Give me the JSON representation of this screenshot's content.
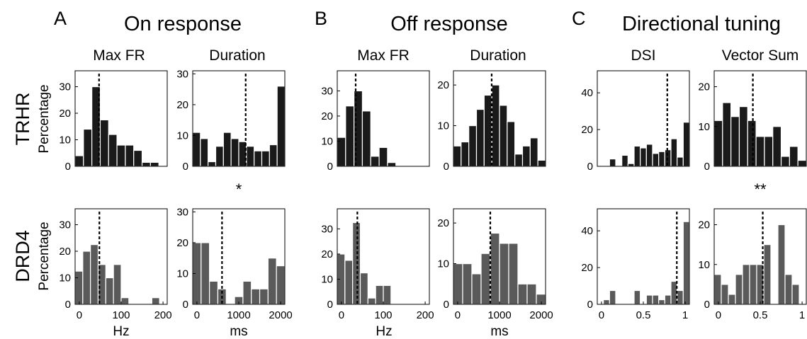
{
  "groups": [
    {
      "letter": "A",
      "title": "On response"
    },
    {
      "letter": "B",
      "title": "Off response"
    },
    {
      "letter": "C",
      "title": "Directional tuning"
    }
  ],
  "column_titles": [
    "Max FR",
    "Duration",
    "Max FR",
    "Duration",
    "DSI",
    "Vector Sum"
  ],
  "row_labels": [
    "TRHR",
    "DRD4"
  ],
  "ylabel": "Percentage",
  "xlabels": [
    "Hz",
    "ms",
    "Hz",
    "ms",
    "",
    ""
  ],
  "significance": [
    {
      "column": 1,
      "text": "*"
    },
    {
      "column": 5,
      "text": "**"
    }
  ],
  "colors": {
    "trhr_bar": "#1a1a1a",
    "drd4_bar": "#5a5a5a",
    "bar_edge": "#ffffff",
    "axis": "#000000"
  },
  "chart_data": [
    {
      "type": "bar",
      "group": "On response",
      "measure": "Max FR",
      "cell_type": "TRHR",
      "xlim": [
        0,
        200
      ],
      "xticks": [],
      "ylim": [
        0,
        36
      ],
      "yticks": [
        0,
        10,
        20,
        30
      ],
      "bin_edges": [
        0,
        200
      ],
      "values": [
        4,
        14,
        30,
        17.5,
        12,
        8,
        8,
        6,
        1.5,
        1.5,
        0
      ],
      "median": 52
    },
    {
      "type": "bar",
      "group": "On response",
      "measure": "Duration",
      "cell_type": "TRHR",
      "xlim": [
        0,
        2000
      ],
      "xticks": [],
      "ylim": [
        0,
        31
      ],
      "yticks": [
        0,
        10,
        20,
        30
      ],
      "bin_edges": [
        0,
        2000
      ],
      "values": [
        11,
        9,
        1.5,
        6.5,
        11,
        9,
        8,
        6.5,
        5,
        5,
        7,
        26
      ],
      "median": 1150
    },
    {
      "type": "bar",
      "group": "Off response",
      "measure": "Max FR",
      "cell_type": "TRHR",
      "xlim": [
        0,
        200
      ],
      "xticks": [],
      "ylim": [
        0,
        38
      ],
      "yticks": [
        0,
        10,
        20,
        30
      ],
      "bin_edges": [
        0,
        200
      ],
      "values": [
        11.5,
        24,
        30,
        22,
        4,
        7.5,
        1.5,
        0,
        0,
        0,
        0
      ],
      "median": 40
    },
    {
      "type": "bar",
      "group": "Off response",
      "measure": "Duration",
      "cell_type": "TRHR",
      "xlim": [
        0,
        2000
      ],
      "xticks": [],
      "ylim": [
        0,
        23.5
      ],
      "yticks": [
        0,
        10,
        20
      ],
      "bin_edges": [
        0,
        2000
      ],
      "values": [
        5,
        6,
        10,
        14,
        17.5,
        20,
        15,
        11,
        3,
        5,
        7,
        1.5
      ],
      "median": 830
    },
    {
      "type": "bar",
      "group": "Directional tuning",
      "measure": "DSI",
      "cell_type": "TRHR",
      "xlim": [
        0,
        1
      ],
      "xticks": [],
      "ylim": [
        0,
        52
      ],
      "yticks": [
        0,
        20,
        40
      ],
      "bin_edges": [
        0,
        1
      ],
      "values": [
        0,
        0,
        4,
        0,
        6,
        1.5,
        11,
        10,
        12,
        7,
        8,
        9,
        15,
        5,
        24
      ],
      "median": 0.76
    },
    {
      "type": "bar",
      "group": "Directional tuning",
      "measure": "Vector Sum",
      "cell_type": "TRHR",
      "xlim": [
        0,
        1
      ],
      "xticks": [],
      "ylim": [
        0,
        24
      ],
      "yticks": [
        0,
        10,
        20
      ],
      "bin_edges": [
        0,
        1
      ],
      "values": [
        11.5,
        16,
        12.5,
        15,
        11.5,
        7.5,
        7.5,
        10,
        2.5,
        5,
        1.5
      ],
      "median": 0.42
    },
    {
      "type": "bar",
      "group": "On response",
      "measure": "Max FR",
      "cell_type": "DRD4",
      "xlim": [
        -10,
        210
      ],
      "xticks": [
        0,
        100,
        200
      ],
      "ylim": [
        0,
        36
      ],
      "yticks": [
        0,
        10,
        20,
        30
      ],
      "bin_edges": [
        -10,
        210
      ],
      "values": [
        12.5,
        20,
        22.5,
        15,
        10,
        15,
        2.5,
        0,
        0,
        0,
        2.5,
        0
      ],
      "median": 48
    },
    {
      "type": "bar",
      "group": "On response",
      "measure": "Duration",
      "cell_type": "DRD4",
      "xlim": [
        -100,
        2100
      ],
      "xticks": [
        0,
        1000,
        2000
      ],
      "ylim": [
        0,
        31
      ],
      "yticks": [
        0,
        10,
        20,
        30
      ],
      "bin_edges": [
        -100,
        2100
      ],
      "values": [
        20,
        20,
        7.5,
        5,
        0,
        2.5,
        7.5,
        5,
        5,
        15,
        12.5
      ],
      "median": 600
    },
    {
      "type": "bar",
      "group": "Off response",
      "measure": "Max FR",
      "cell_type": "DRD4",
      "xlim": [
        -10,
        210
      ],
      "xticks": [
        0,
        100,
        200
      ],
      "ylim": [
        0,
        38
      ],
      "yticks": [
        0,
        10,
        20,
        30
      ],
      "bin_edges": [
        -10,
        210
      ],
      "values": [
        20,
        17.5,
        32.5,
        12.5,
        2.5,
        7.5,
        7.5,
        0,
        0,
        0,
        0,
        0
      ],
      "median": 38
    },
    {
      "type": "bar",
      "group": "Off response",
      "measure": "Duration",
      "cell_type": "DRD4",
      "xlim": [
        -100,
        2100
      ],
      "xticks": [
        0,
        1000,
        2000
      ],
      "ylim": [
        0,
        23.5
      ],
      "yticks": [
        0,
        10,
        20
      ],
      "bin_edges": [
        -100,
        2100
      ],
      "values": [
        10,
        10,
        7.5,
        12.5,
        17.5,
        15,
        15,
        5,
        5,
        2.5
      ],
      "median": 780
    },
    {
      "type": "bar",
      "group": "Directional tuning",
      "measure": "DSI",
      "cell_type": "DRD4",
      "xlim": [
        -0.05,
        1.05
      ],
      "xticks": [
        0,
        0.5,
        1
      ],
      "ylim": [
        0,
        52
      ],
      "yticks": [
        0,
        20,
        40
      ],
      "bin_edges": [
        -0.05,
        1.05
      ],
      "values": [
        0,
        2.5,
        7.5,
        0,
        0,
        0,
        7.5,
        0,
        5,
        5,
        2.5,
        5,
        12.5,
        7.5,
        45
      ],
      "median": 0.9
    },
    {
      "type": "bar",
      "group": "Directional tuning",
      "measure": "Vector Sum",
      "cell_type": "DRD4",
      "xlim": [
        -0.05,
        1.05
      ],
      "xticks": [
        0,
        0.5,
        1
      ],
      "ylim": [
        0,
        24
      ],
      "yticks": [
        0,
        10,
        20
      ],
      "bin_edges": [
        -0.05,
        1.05
      ],
      "values": [
        7.5,
        5,
        2.5,
        7.5,
        10,
        10,
        10,
        15,
        0,
        20,
        7.5,
        5,
        0
      ],
      "median": 0.53
    }
  ]
}
